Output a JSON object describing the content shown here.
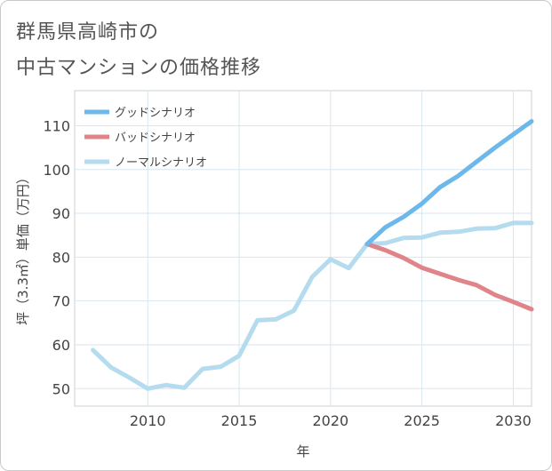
{
  "title": {
    "line1": "群馬県高崎市の",
    "line2": "中古マンションの価格推移"
  },
  "chart_data": {
    "type": "line",
    "xlabel": "年",
    "ylabel": "坪（3.3㎡）単価（万円）",
    "xlim": [
      2006,
      2031
    ],
    "ylim": [
      46,
      118
    ],
    "xticks": [
      2010,
      2015,
      2020,
      2025,
      2030
    ],
    "yticks": [
      50,
      60,
      70,
      80,
      90,
      100,
      110
    ],
    "grid": true,
    "legend_position": "top-left",
    "series": [
      {
        "name": "グッドシナリオ",
        "color": "#6cb8ea",
        "x": [
          2022,
          2023,
          2024,
          2025,
          2026,
          2027,
          2028,
          2029,
          2030,
          2031
        ],
        "y": [
          83.0,
          86.8,
          89.2,
          92.2,
          96.0,
          98.6,
          101.8,
          105.0,
          108.0,
          111.0
        ]
      },
      {
        "name": "バッドシナリオ",
        "color": "#e0848a",
        "x": [
          2022,
          2023,
          2024,
          2025,
          2026,
          2027,
          2028,
          2029,
          2030,
          2031
        ],
        "y": [
          83.0,
          81.6,
          79.8,
          77.6,
          76.2,
          74.8,
          73.6,
          71.4,
          69.8,
          68.1
        ]
      },
      {
        "name": "ノーマルシナリオ",
        "color": "#b4dbee",
        "x": [
          2007,
          2008,
          2009,
          2010,
          2011,
          2012,
          2013,
          2014,
          2015,
          2016,
          2017,
          2018,
          2019,
          2020,
          2021,
          2022,
          2023,
          2024,
          2025,
          2026,
          2027,
          2028,
          2029,
          2030,
          2031
        ],
        "y": [
          58.8,
          54.8,
          52.5,
          50.0,
          50.8,
          50.2,
          54.5,
          55.0,
          57.5,
          65.6,
          65.8,
          67.8,
          75.5,
          79.5,
          77.5,
          83.0,
          83.2,
          84.4,
          84.5,
          85.6,
          85.8,
          86.5,
          86.6,
          87.8,
          87.8
        ]
      }
    ]
  }
}
